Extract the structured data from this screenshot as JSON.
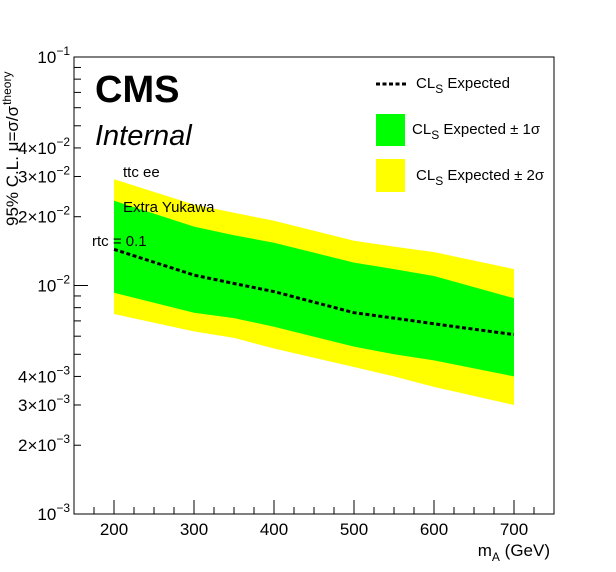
{
  "chart_data": {
    "type": "area",
    "xlabel": "m_A (GeV)",
    "xlabel_main": "m",
    "xlabel_sub": "A",
    "xlabel_tail": " (GeV)",
    "ylabel": "95% C.L. μ=σ/σ_theory",
    "ylabel_main": "95% C.L. μ=σ/σ",
    "ylabel_sub": "theory",
    "xlim": [
      150,
      750
    ],
    "ylim": [
      0.001,
      0.1
    ],
    "yscale": "log",
    "x_ticks": [
      "200",
      "300",
      "400",
      "500",
      "600",
      "700"
    ],
    "y_tick_labels": [
      {
        "value": 0.001,
        "mantissa": "",
        "exp": "−3"
      },
      {
        "value": 0.002,
        "mantissa": "2×",
        "exp": "−3"
      },
      {
        "value": 0.003,
        "mantissa": "3×",
        "exp": "−3"
      },
      {
        "value": 0.004,
        "mantissa": "4×",
        "exp": "−3"
      },
      {
        "value": 0.01,
        "mantissa": "",
        "exp": "−2"
      },
      {
        "value": 0.02,
        "mantissa": "2×",
        "exp": "−2"
      },
      {
        "value": 0.03,
        "mantissa": "3×",
        "exp": "−2"
      },
      {
        "value": 0.04,
        "mantissa": "4×",
        "exp": "−2"
      },
      {
        "value": 0.1,
        "mantissa": "",
        "exp": "−1"
      }
    ],
    "x": [
      200,
      300,
      350,
      400,
      500,
      550,
      600,
      700
    ],
    "series": [
      {
        "name": "CL_S Expected",
        "values": [
          0.0144,
          0.0111,
          0.0102,
          0.0094,
          0.0076,
          0.0072,
          0.0068,
          0.0061
        ]
      },
      {
        "name": "CL_S Expected ± 1σ",
        "lower": [
          0.0093,
          0.0076,
          0.0072,
          0.0066,
          0.0054,
          0.005,
          0.0047,
          0.004
        ],
        "upper": [
          0.0235,
          0.0181,
          0.0166,
          0.0154,
          0.0126,
          0.0118,
          0.011,
          0.0088
        ]
      },
      {
        "name": "CL_S Expected ± 2σ",
        "lower": [
          0.0075,
          0.0063,
          0.0059,
          0.0053,
          0.0044,
          0.004,
          0.0036,
          0.003
        ],
        "upper": [
          0.0292,
          0.0226,
          0.0208,
          0.0192,
          0.0157,
          0.0148,
          0.014,
          0.0118
        ]
      }
    ],
    "colors": {
      "band_2sigma": "#ffff00",
      "band_1sigma": "#00ff00",
      "expected_line": "#000000"
    },
    "legend_position": "top-right",
    "grid": false
  },
  "labels": {
    "cms": "CMS",
    "internal": "Internal",
    "channel": "ttc  ee",
    "model": "Extra Yukawa",
    "coupling": "rtc = 0.1"
  },
  "legend": {
    "expected": {
      "main": "CL",
      "sub": "S",
      "tail": "  Expected"
    },
    "one_sigma": {
      "main": "CL",
      "sub": "S",
      "tail": "  Expected ± 1σ"
    },
    "two_sigma": {
      "main": "CL",
      "sub": "S",
      "tail": "  Expected ± 2σ"
    }
  }
}
